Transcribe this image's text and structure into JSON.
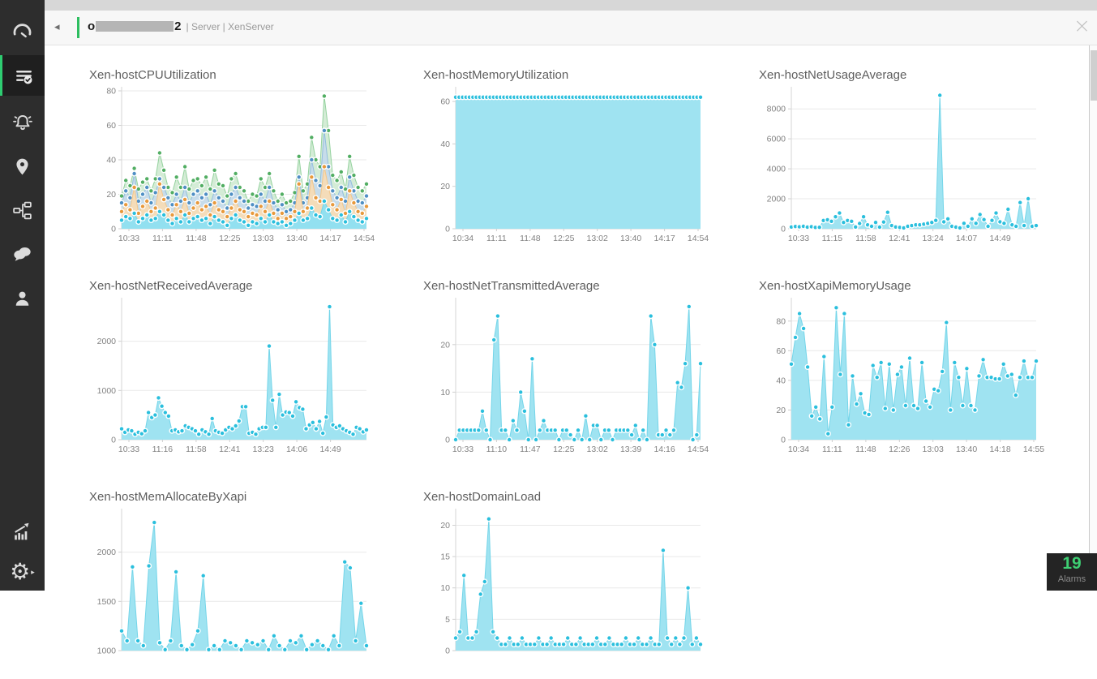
{
  "header": {
    "back_icon": "◂",
    "device_prefix": "o",
    "device_suffix": "2",
    "breadcrumb": "| Server | XenServer",
    "close_icon": "×"
  },
  "sidebar": {
    "items": [
      {
        "id": "dashboard",
        "active": false
      },
      {
        "id": "inventory",
        "active": true
      },
      {
        "id": "alarms",
        "active": false
      },
      {
        "id": "maps",
        "active": false
      },
      {
        "id": "topology",
        "active": false
      },
      {
        "id": "chat",
        "active": false
      },
      {
        "id": "users",
        "active": false
      },
      {
        "id": "reports",
        "active": false
      },
      {
        "id": "settings",
        "active": false
      }
    ]
  },
  "alarms_badge": {
    "count": "19",
    "label": "Alarms"
  },
  "colors": {
    "accent_green": "#2ecc71",
    "sidebar_bg": "#2d2d2d",
    "cyan_dot": "#2abfdd",
    "cyan_fill": "#9fe3f1",
    "green_dot": "#52ae63",
    "blue_dot": "#4f8fc4",
    "orange_dot": "#e8993c"
  },
  "chart_data": [
    {
      "type": "area",
      "title": "Xen-hostCPUUtilization",
      "ylim": [
        0,
        80
      ],
      "yticks": [
        0,
        20,
        40,
        60,
        80
      ],
      "x_labels": [
        "10:33",
        "11:11",
        "11:48",
        "12:25",
        "13:03",
        "13:40",
        "14:17",
        "14:54"
      ],
      "series": [
        {
          "dot": "#52ae63",
          "line": "#94d29e",
          "fill": "#cde9cf",
          "fill_opacity": 0.85,
          "values": [
            19,
            28,
            25,
            35,
            23,
            27,
            29,
            22,
            29,
            44,
            34,
            24,
            21,
            30,
            24,
            36,
            23,
            28,
            29,
            25,
            30,
            23,
            34,
            26,
            25,
            19,
            29,
            32,
            24,
            22,
            16,
            20,
            19,
            29,
            24,
            32,
            22,
            16,
            20,
            15,
            16,
            21,
            42,
            22,
            26,
            53,
            40,
            36,
            77,
            57,
            31,
            28,
            33,
            23,
            42,
            31,
            24,
            22,
            26
          ]
        },
        {
          "dot": "#4f8fc4",
          "line": "#93bede",
          "fill": "#c4d9ed",
          "fill_opacity": 0.85,
          "values": [
            15,
            22,
            18,
            32,
            16,
            20,
            24,
            15,
            21,
            29,
            24,
            18,
            14,
            20,
            16,
            24,
            15,
            20,
            22,
            18,
            20,
            14,
            22,
            18,
            16,
            12,
            20,
            24,
            18,
            16,
            12,
            14,
            13,
            20,
            16,
            24,
            15,
            11,
            14,
            10,
            11,
            15,
            30,
            15,
            18,
            40,
            28,
            25,
            57,
            36,
            22,
            18,
            24,
            16,
            30,
            22,
            16,
            15,
            19
          ]
        },
        {
          "dot": "#e8993c",
          "line": "#f3c78b",
          "fill": "#f8dcb4",
          "fill_opacity": 0.9,
          "values": [
            10,
            14,
            11,
            24,
            9,
            13,
            16,
            10,
            12,
            26,
            17,
            11,
            8,
            14,
            10,
            17,
            9,
            12,
            15,
            11,
            13,
            8,
            15,
            11,
            10,
            7,
            12,
            16,
            11,
            10,
            7,
            9,
            8,
            13,
            10,
            16,
            9,
            6,
            9,
            6,
            7,
            10,
            26,
            10,
            12,
            30,
            18,
            16,
            36,
            24,
            14,
            11,
            17,
            9,
            22,
            15,
            10,
            9,
            13
          ]
        },
        {
          "dot": "#2abfdd",
          "line": "#74d5e9",
          "fill": "#92e0f0",
          "fill_opacity": 1,
          "values": [
            5,
            7,
            6,
            9,
            4,
            6,
            8,
            5,
            6,
            10,
            8,
            5,
            3,
            6,
            4,
            8,
            4,
            6,
            7,
            5,
            6,
            3,
            7,
            5,
            4,
            2,
            6,
            8,
            5,
            4,
            2,
            4,
            3,
            6,
            4,
            8,
            4,
            3,
            4,
            2,
            3,
            5,
            9,
            5,
            6,
            12,
            8,
            7,
            16,
            11,
            6,
            5,
            8,
            4,
            10,
            7,
            5,
            4,
            6
          ]
        }
      ]
    },
    {
      "type": "area",
      "title": "Xen-hostMemoryUtilization",
      "ylim": [
        0,
        65
      ],
      "yticks": [
        0,
        20,
        40,
        60
      ],
      "x_labels": [
        "10:34",
        "11:11",
        "11:48",
        "12:25",
        "13:02",
        "13:40",
        "14:17",
        "14:54"
      ],
      "series": [
        {
          "dot": "#2abfdd",
          "line": "#74d5e9",
          "fill": "#9fe3f1",
          "fill_opacity": 1,
          "values": [
            62,
            62,
            62,
            62,
            62,
            62,
            62,
            62,
            62,
            62,
            62,
            62,
            62,
            62,
            62,
            62,
            62,
            62,
            62,
            62,
            62,
            62,
            62,
            62,
            62,
            62,
            62,
            62,
            62,
            62,
            62,
            62,
            62,
            62,
            62,
            62,
            62,
            62,
            62,
            62,
            62,
            62,
            62,
            62,
            62,
            62,
            62,
            62,
            62,
            62,
            62,
            62,
            62,
            62,
            62,
            62,
            62,
            62,
            62,
            62,
            62,
            62,
            62,
            62,
            62,
            62,
            62,
            62,
            62,
            62,
            62,
            62
          ]
        }
      ]
    },
    {
      "type": "area",
      "title": "Xen-hostNetUsageAverage",
      "ylim": [
        0,
        9200
      ],
      "yticks": [
        0,
        2000,
        4000,
        6000,
        8000
      ],
      "x_labels": [
        "10:33",
        "11:15",
        "11:58",
        "12:41",
        "13:24",
        "14:07",
        "14:49"
      ],
      "series": [
        {
          "dot": "#2abfdd",
          "line": "#74d5e9",
          "fill": "#9fe3f1",
          "fill_opacity": 1,
          "values": [
            120,
            150,
            130,
            160,
            110,
            140,
            90,
            100,
            550,
            600,
            500,
            800,
            1050,
            420,
            550,
            500,
            120,
            350,
            800,
            260,
            160,
            420,
            110,
            450,
            1100,
            210,
            120,
            90,
            60,
            160,
            210,
            260,
            260,
            310,
            360,
            420,
            560,
            8900,
            460,
            660,
            160,
            110,
            60,
            360,
            160,
            660,
            360,
            950,
            610,
            160,
            560,
            1050,
            460,
            360,
            1300,
            260,
            160,
            1750,
            210,
            2000,
            160,
            210
          ]
        }
      ]
    },
    {
      "type": "area",
      "title": "Xen-hostNetReceivedAverage",
      "ylim": [
        0,
        2800
      ],
      "yticks": [
        0,
        1000,
        2000
      ],
      "x_labels": [
        "10:33",
        "11:16",
        "11:58",
        "12:41",
        "13:23",
        "14:06",
        "14:49"
      ],
      "series": [
        {
          "dot": "#2abfdd",
          "line": "#74d5e9",
          "fill": "#9fe3f1",
          "fill_opacity": 1,
          "values": [
            220,
            150,
            200,
            180,
            110,
            150,
            120,
            180,
            550,
            450,
            500,
            850,
            680,
            550,
            480,
            180,
            200,
            160,
            180,
            280,
            250,
            220,
            180,
            110,
            200,
            160,
            110,
            430,
            180,
            150,
            130,
            200,
            250,
            220,
            280,
            380,
            670,
            670,
            130,
            150,
            110,
            220,
            250,
            250,
            1900,
            800,
            250,
            920,
            500,
            560,
            550,
            480,
            770,
            650,
            620,
            220,
            300,
            350,
            220,
            370,
            130,
            460,
            2700,
            300,
            250,
            280,
            220,
            180,
            150,
            110,
            250,
            220,
            160,
            200
          ]
        }
      ]
    },
    {
      "type": "area",
      "title": "Xen-hostNetTransmittedAverage",
      "ylim": [
        0,
        29
      ],
      "yticks": [
        0,
        10,
        20
      ],
      "x_labels": [
        "10:33",
        "11:10",
        "11:47",
        "12:25",
        "13:02",
        "13:39",
        "14:16",
        "14:54"
      ],
      "series": [
        {
          "dot": "#2abfdd",
          "line": "#74d5e9",
          "fill": "#9fe3f1",
          "fill_opacity": 1,
          "values": [
            0,
            2,
            2,
            2,
            2,
            2,
            2,
            6,
            2,
            0,
            21,
            26,
            2,
            2,
            0,
            4,
            2,
            10,
            6,
            0,
            17,
            0,
            2,
            4,
            2,
            2,
            2,
            0,
            2,
            2,
            1,
            0,
            2,
            0,
            5,
            0,
            3,
            3,
            0,
            2,
            2,
            0,
            2,
            2,
            2,
            2,
            1,
            3,
            0,
            2,
            0,
            26,
            20,
            1,
            1,
            2,
            1,
            2,
            12,
            11,
            16,
            28,
            0,
            1,
            16
          ]
        }
      ]
    },
    {
      "type": "area",
      "title": "Xen-hostXapiMemoryUsage",
      "ylim": [
        0,
        93
      ],
      "yticks": [
        0,
        20,
        40,
        60,
        80
      ],
      "x_labels": [
        "10:34",
        "11:11",
        "11:48",
        "12:26",
        "13:03",
        "13:40",
        "14:18",
        "14:55"
      ],
      "series": [
        {
          "dot": "#2abfdd",
          "line": "#74d5e9",
          "fill": "#9fe3f1",
          "fill_opacity": 1,
          "values": [
            51,
            69,
            85,
            75,
            49,
            16,
            22,
            14,
            56,
            4,
            22,
            89,
            44,
            85,
            10,
            43,
            24,
            31,
            18,
            17,
            50,
            42,
            52,
            21,
            51,
            20,
            44,
            49,
            23,
            55,
            23,
            21,
            52,
            26,
            22,
            34,
            33,
            46,
            79,
            20,
            52,
            42,
            23,
            48,
            23,
            20,
            43,
            54,
            42,
            42,
            41,
            41,
            51,
            43,
            44,
            30,
            42,
            53,
            42,
            42,
            53
          ]
        }
      ]
    },
    {
      "type": "area",
      "title": "Xen-hostMemAllocateByXapi",
      "ylim": [
        1000,
        2400
      ],
      "yticks": [
        1000,
        1500,
        2000
      ],
      "x_labels": [],
      "series": [
        {
          "dot": "#2abfdd",
          "line": "#74d5e9",
          "fill": "#9fe3f1",
          "fill_opacity": 1,
          "values": [
            1200,
            1100,
            1850,
            1100,
            1050,
            1860,
            2300,
            1080,
            1010,
            1100,
            1800,
            1050,
            1010,
            1060,
            1200,
            1760,
            1010,
            1050,
            1010,
            1100,
            1080,
            1050,
            1010,
            1100,
            1080,
            1060,
            1100,
            1010,
            1150,
            1050,
            1010,
            1100,
            1080,
            1150,
            1010,
            1060,
            1100,
            1050,
            1010,
            1150,
            1050,
            1900,
            1840,
            1100,
            1480,
            1050
          ]
        }
      ]
    },
    {
      "type": "area",
      "title": "Xen-hostDomainLoad",
      "ylim": [
        0,
        22
      ],
      "yticks": [
        0,
        5,
        10,
        15,
        20
      ],
      "x_labels": [],
      "series": [
        {
          "dot": "#2abfdd",
          "line": "#74d5e9",
          "fill": "#9fe3f1",
          "fill_opacity": 1,
          "values": [
            2,
            3,
            12,
            2,
            2,
            3,
            9,
            11,
            21,
            3,
            2,
            1,
            1,
            2,
            1,
            1,
            2,
            1,
            1,
            1,
            2,
            1,
            1,
            2,
            1,
            1,
            1,
            2,
            1,
            1,
            2,
            1,
            1,
            1,
            2,
            1,
            1,
            2,
            1,
            1,
            1,
            2,
            1,
            1,
            2,
            1,
            1,
            2,
            1,
            1,
            16,
            2,
            1,
            2,
            1,
            2,
            10,
            1,
            2,
            1
          ]
        }
      ]
    }
  ]
}
